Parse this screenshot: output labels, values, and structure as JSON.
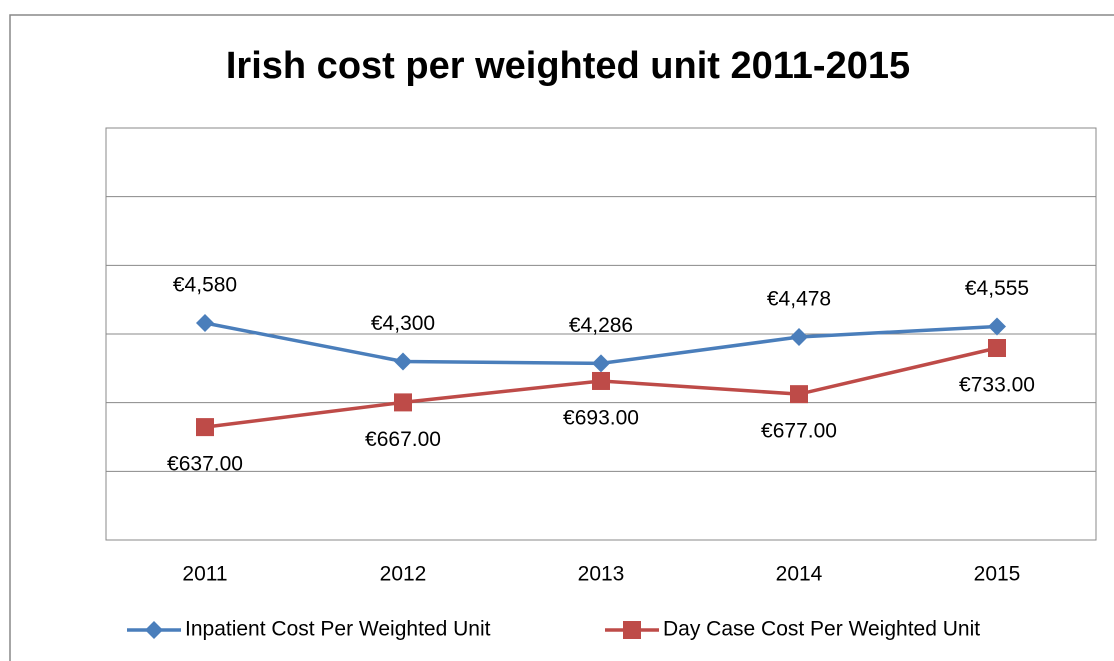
{
  "chart_data": {
    "type": "line",
    "title": "Irish cost per weighted unit 2011-2015",
    "categories": [
      "2011",
      "2012",
      "2013",
      "2014",
      "2015"
    ],
    "series": [
      {
        "name": "Inpatient Cost Per Weighted Unit",
        "color": "#4a7ebb",
        "marker": "diamond",
        "values": [
          4580,
          4300,
          4286,
          4478,
          4555
        ],
        "value_labels": [
          "€4,580",
          "€4,300",
          "€4,286",
          "€4,478",
          "€4,555"
        ]
      },
      {
        "name": "Day Case Cost Per Weighted Unit",
        "color": "#be4b48",
        "marker": "square",
        "axis": "y2",
        "values": [
          637,
          667,
          693,
          677,
          733
        ],
        "value_labels": [
          "€637.00",
          "€667.00",
          "€693.00",
          "€677.00",
          "€733.00"
        ]
      }
    ],
    "ylim": [
      3000,
      6000
    ],
    "yticks": [
      3000,
      3500,
      4000,
      4500,
      5000,
      5500,
      6000
    ],
    "y2lim": [
      500,
      1000
    ],
    "grid": true,
    "legend": "bottom"
  }
}
